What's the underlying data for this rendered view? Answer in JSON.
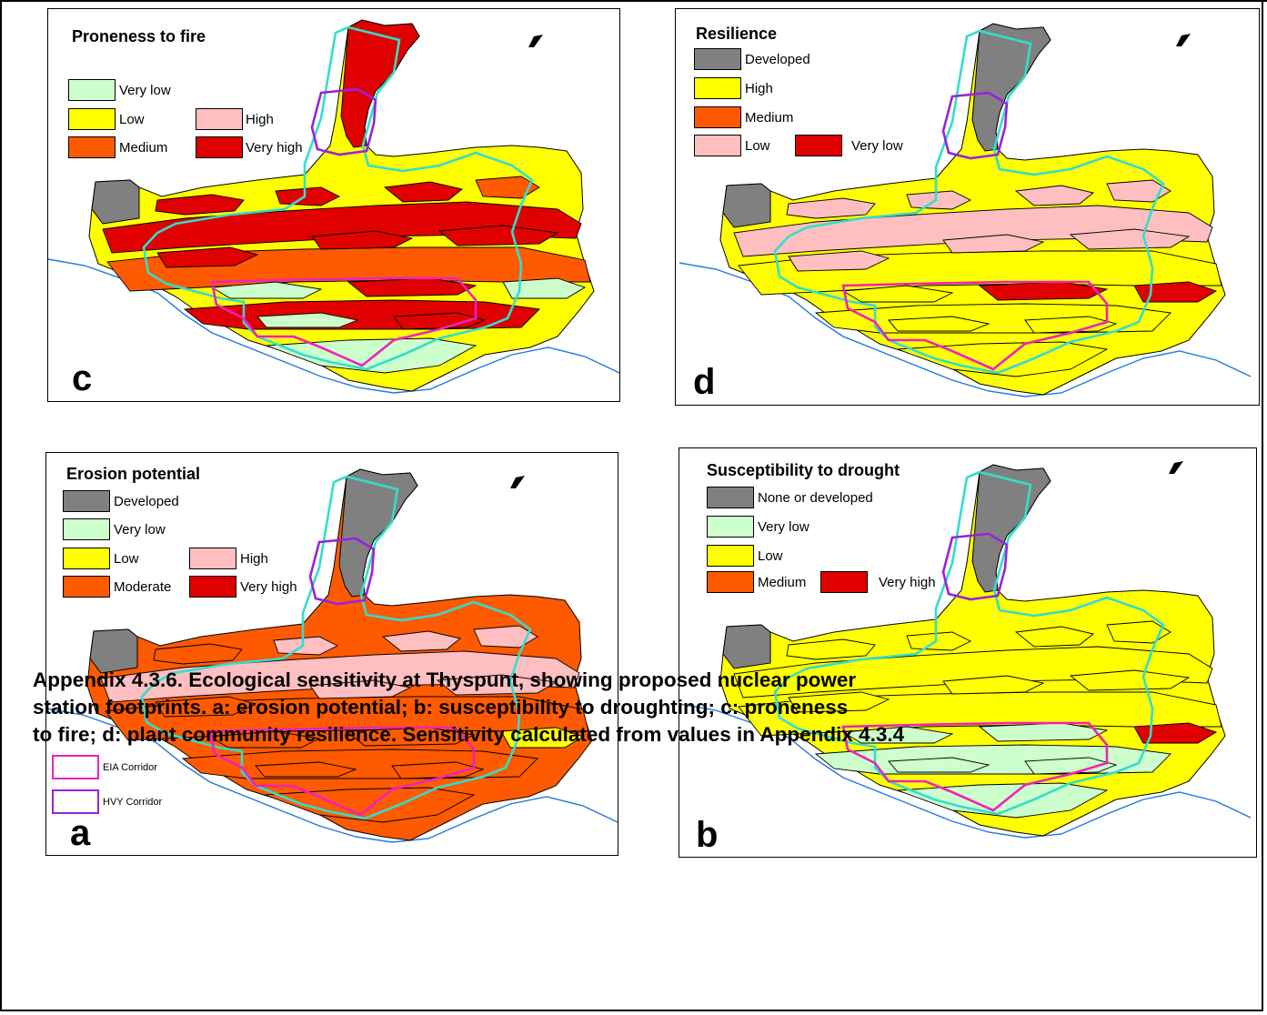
{
  "colors": {
    "developed": "#808080",
    "very_low": "#ccffcc",
    "low_yellow": "#ffff00",
    "medium_orange": "#ff5a00",
    "high_pink": "#ffbfc0",
    "very_high_red": "#e00000",
    "footprint_cyan": "#33ddcc",
    "eia_corridor": "#ee22bb",
    "hvy_corridor": "#9922dd",
    "coastline": "#2277dd"
  },
  "panels": {
    "c": {
      "title": "Proneness to fire",
      "letter": "c",
      "legend": [
        "Very low",
        "Low",
        "High",
        "Medium",
        "Very high"
      ]
    },
    "d": {
      "title": "Resilience",
      "letter": "d",
      "legend": [
        "Developed",
        "High",
        "Medium",
        "Low",
        "Very low"
      ]
    },
    "a": {
      "title": "Erosion potential",
      "letter": "a",
      "legend": [
        "Developed",
        "Very low",
        "Low",
        "High",
        "Moderate",
        "Very high"
      ],
      "corridors": [
        "EIA Corridor",
        "HVY Corridor"
      ]
    },
    "b": {
      "title": "Susceptibility to drought",
      "letter": "b",
      "legend": [
        "None or developed",
        "Very low",
        "Low",
        "Medium",
        "Very high"
      ]
    }
  },
  "caption": {
    "line1": "Appendix 4.3.6.  Ecological sensitivity at Thyspunt, showing proposed nuclear power",
    "line2": "station footprints. a: erosion potential; b: susceptibility to droughting; c: proneness",
    "line3": " to fire; d: plant community resilience.  Sensitivity calculated from values in Appendix 4.3.4"
  }
}
